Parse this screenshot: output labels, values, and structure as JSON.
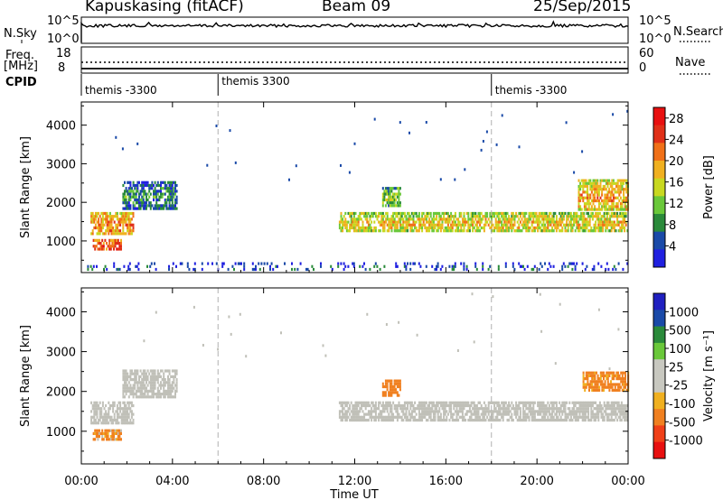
{
  "header": {
    "station": "Kapuskasing (fitACF)",
    "beam": "Beam 09",
    "date": "25/Sep/2015"
  },
  "top_panels": {
    "nsky_label": "N.Sky",
    "nsky_ticks": [
      "10^5",
      "10^0"
    ],
    "nsearch_label": "N.Search",
    "nsearch_ticks": [
      "10^5",
      "10^0"
    ],
    "freq_label": "Freq.",
    "freq_unit": "[MHz]",
    "freq_ticks": [
      "18",
      "8"
    ],
    "nave_label": "Nave",
    "nave_ticks": [
      "60",
      "0"
    ],
    "cpid_label": "CPID",
    "cpid_segments": [
      {
        "label": "themis -3300",
        "start_hour": 0
      },
      {
        "label": "themis 3300",
        "start_hour": 6
      },
      {
        "label": "themis -3300",
        "start_hour": 18
      }
    ]
  },
  "colors": {
    "power_scale": [
      "#2020e0",
      "#1a4aa8",
      "#2a8a3a",
      "#6ac83a",
      "#c8d820",
      "#f0b020",
      "#f07018",
      "#e03018",
      "#e81010"
    ],
    "velocity_scale": [
      "#e81010",
      "#f04018",
      "#f08020",
      "#f0b020",
      "#c8c8c0",
      "#c8c8c0",
      "#6ac83a",
      "#2a8a3a",
      "#1a4aa8",
      "#2020c0"
    ],
    "ground_scatter": "#c0c0b8"
  },
  "chart_data": [
    {
      "type": "heatmap",
      "name": "power",
      "xlabel": "",
      "ylabel": "Slant Range [km]",
      "xlim_hours": [
        0,
        24
      ],
      "ylim_km": [
        180,
        4600
      ],
      "y_ticks": [
        1000,
        2000,
        3000,
        4000
      ],
      "colorbar": {
        "label": "Power [dB]",
        "ticks": [
          4,
          8,
          12,
          16,
          20,
          24,
          28
        ],
        "range": [
          0,
          30
        ]
      },
      "bands": [
        {
          "t0": 0.4,
          "t1": 2.3,
          "r0": 1150,
          "r1": 1750,
          "value": 22
        },
        {
          "t0": 0.5,
          "t1": 1.8,
          "r0": 750,
          "r1": 1050,
          "value": 26
        },
        {
          "t0": 1.8,
          "t1": 4.2,
          "r0": 1800,
          "r1": 2550,
          "value": 9
        },
        {
          "t0": 11.3,
          "t1": 24,
          "r0": 1250,
          "r1": 1750,
          "value": 18
        },
        {
          "t0": 13.2,
          "t1": 14.0,
          "r0": 1900,
          "r1": 2400,
          "value": 14
        },
        {
          "t0": 21.8,
          "t1": 24,
          "r0": 1800,
          "r1": 2600,
          "value": 20
        },
        {
          "t0": 0,
          "t1": 24,
          "r0": 200,
          "r1": 450,
          "value": 6
        }
      ]
    },
    {
      "type": "heatmap",
      "name": "velocity",
      "xlabel": "Time UT",
      "ylabel": "Slant Range [km]",
      "xlim_hours": [
        0,
        24
      ],
      "ylim_km": [
        180,
        4600
      ],
      "y_ticks": [
        1000,
        2000,
        3000,
        4000
      ],
      "x_tick_labels": [
        "00:00",
        "04:00",
        "08:00",
        "12:00",
        "16:00",
        "20:00",
        "00:00"
      ],
      "colorbar": {
        "label": "Velocity [m s⁻¹]",
        "ticks": [
          1000,
          500,
          100,
          25,
          -25,
          -100,
          -500,
          -1000
        ]
      },
      "bands": [
        {
          "t0": 0.4,
          "t1": 2.3,
          "r0": 1150,
          "r1": 1750,
          "value": 0
        },
        {
          "t0": 0.5,
          "t1": 1.8,
          "r0": 750,
          "r1": 1050,
          "value": -150
        },
        {
          "t0": 1.8,
          "t1": 4.2,
          "r0": 1800,
          "r1": 2550,
          "value": 0
        },
        {
          "t0": 11.3,
          "t1": 24,
          "r0": 1250,
          "r1": 1750,
          "value": 0
        },
        {
          "t0": 13.2,
          "t1": 14.0,
          "r0": 1900,
          "r1": 2300,
          "value": -300
        },
        {
          "t0": 22.0,
          "t1": 24,
          "r0": 2000,
          "r1": 2500,
          "value": -200
        }
      ]
    }
  ]
}
